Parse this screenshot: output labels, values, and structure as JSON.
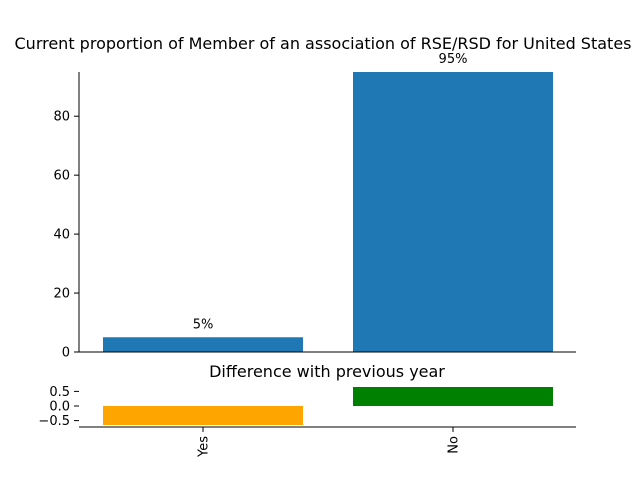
{
  "chart_data": [
    {
      "type": "bar",
      "title": "Current proportion of Member of an association of RSE/RSD for United States",
      "categories": [
        "Yes",
        "No"
      ],
      "values": [
        5,
        95
      ],
      "value_labels": [
        "5%",
        "95%"
      ],
      "ylim": [
        0,
        95
      ],
      "yticks": [
        0,
        20,
        40,
        60,
        80
      ],
      "colors": [
        "#1f77b4",
        "#1f77b4"
      ],
      "xlabel": "",
      "ylabel": ""
    },
    {
      "type": "bar",
      "title": "Difference with previous year",
      "categories": [
        "Yes",
        "No"
      ],
      "values": [
        -0.65,
        0.65
      ],
      "ylim": [
        -0.65,
        0.65
      ],
      "yticks": [
        -0.5,
        0.0,
        0.5
      ],
      "ytick_labels": [
        "−0.5",
        "0.0",
        "0.5"
      ],
      "colors": [
        "#ffa500",
        "#008000"
      ],
      "xlabel": "",
      "ylabel": ""
    }
  ]
}
